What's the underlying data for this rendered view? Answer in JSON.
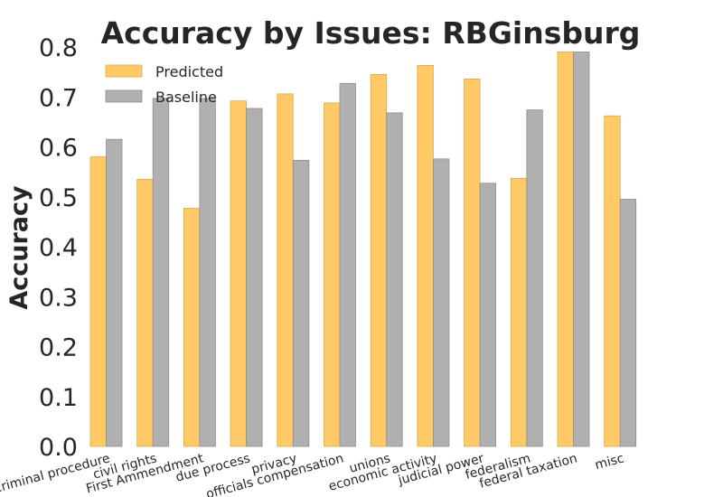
{
  "chart_data": {
    "type": "bar",
    "title": "Accuracy by Issues: RBGinsburg",
    "xlabel": "",
    "ylabel": "Accuracy",
    "ylim": [
      0,
      0.8
    ],
    "yticks": [
      "0.0",
      "0.1",
      "0.2",
      "0.3",
      "0.4",
      "0.5",
      "0.6",
      "0.7",
      "0.8"
    ],
    "grid": false,
    "legend_position": "top-left",
    "categories": [
      "criminal procedure",
      "civil rights",
      "First Ammendment",
      "due process",
      "privacy",
      "officials compensation",
      "unions",
      "economic activity",
      "judicial power",
      "federalism",
      "federal taxation",
      "misc"
    ],
    "series": [
      {
        "name": "Predicted",
        "color": "#ffc966",
        "values": [
          0.58,
          0.535,
          0.477,
          0.692,
          0.706,
          0.688,
          0.745,
          0.763,
          0.736,
          0.537,
          0.79,
          0.662
        ]
      },
      {
        "name": "Baseline",
        "color": "#b0b0b0",
        "values": [
          0.615,
          0.697,
          0.697,
          0.677,
          0.573,
          0.727,
          0.668,
          0.576,
          0.527,
          0.674,
          0.79,
          0.495
        ]
      }
    ]
  }
}
